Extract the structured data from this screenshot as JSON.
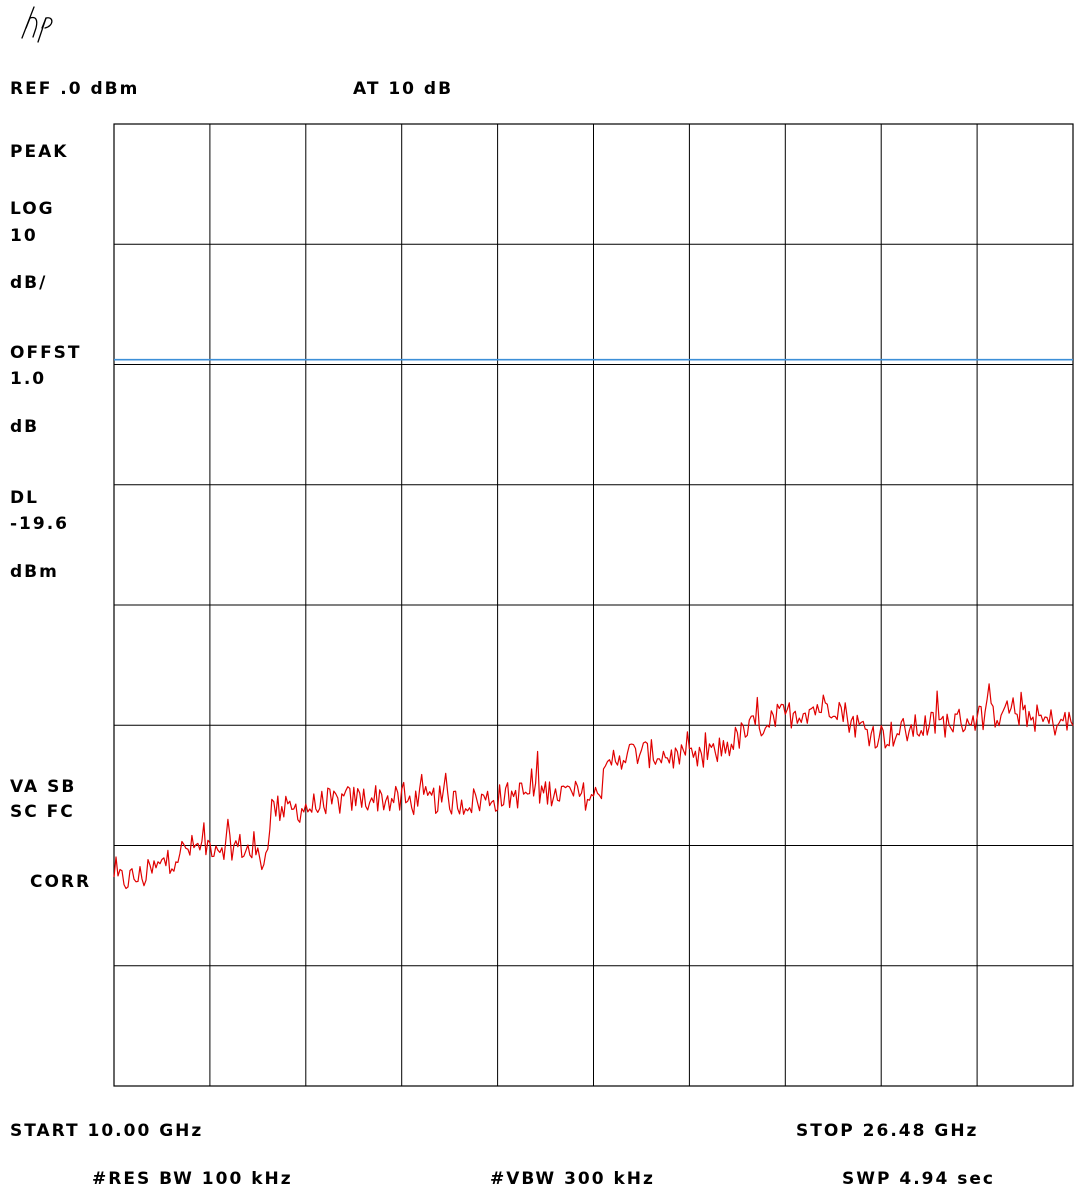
{
  "brand_logo": "hp",
  "header": {
    "ref_level": "REF .0 dBm",
    "attenuation": "AT 10 dB"
  },
  "left_annotations": {
    "detector": "PEAK",
    "scale_type": "LOG",
    "scale_value": "10",
    "scale_unit": "dB/",
    "offset_label": "OFFST",
    "offset_value": "1.0",
    "offset_unit": "dB",
    "display_line_label": "DL",
    "display_line_value": "-19.6",
    "display_line_unit": "dBm",
    "status_line1": "VA SB",
    "status_line2": "SC FC",
    "correction": "CORR"
  },
  "footer": {
    "start": "START 10.00 GHz",
    "stop": "STOP 26.48 GHz",
    "res_bw": "#RES BW 100 kHz",
    "vbw": "#VBW 300 kHz",
    "sweep": "SWP 4.94 sec"
  },
  "colors": {
    "trace": "#e00000",
    "display_line": "#3c8fd8",
    "grid": "#000000"
  },
  "chart_data": {
    "type": "line",
    "x_unit": "GHz",
    "y_unit": "dBm",
    "xlim": [
      10.0,
      26.48
    ],
    "ylim": [
      -80,
      0
    ],
    "x_divisions": 10,
    "y_divisions": 8,
    "grid": true,
    "display_line_dbm": -19.6,
    "series": [
      {
        "x": [
          10.0,
          10.5,
          10.8,
          11.2,
          11.7,
          12.2,
          12.6,
          12.7,
          13.0,
          13.5,
          14.0,
          14.5,
          15.0,
          15.5,
          16.0,
          16.5,
          17.0,
          17.5,
          18.3,
          18.4,
          18.6,
          19.0,
          19.5,
          20.0,
          20.5,
          21.0,
          21.5,
          22.0,
          22.4,
          22.7,
          23.0,
          23.2,
          23.5,
          24.0,
          24.5,
          25.0,
          25.5,
          26.0,
          26.48
        ],
        "y": [
          -63.0,
          -62.6,
          -61.7,
          -60.4,
          -59.9,
          -60.1,
          -61.3,
          -56.8,
          -57.1,
          -56.7,
          -56.2,
          -56.0,
          -56.4,
          -56.2,
          -56.4,
          -56.1,
          -55.7,
          -55.5,
          -56.0,
          -54.8,
          -52.6,
          -52.3,
          -52.5,
          -53.1,
          -51.8,
          -50.1,
          -49.2,
          -48.6,
          -48.2,
          -49.8,
          -50.6,
          -50.9,
          -50.6,
          -50.0,
          -49.7,
          -49.2,
          -48.8,
          -49.7,
          -49.8
        ]
      }
    ]
  }
}
